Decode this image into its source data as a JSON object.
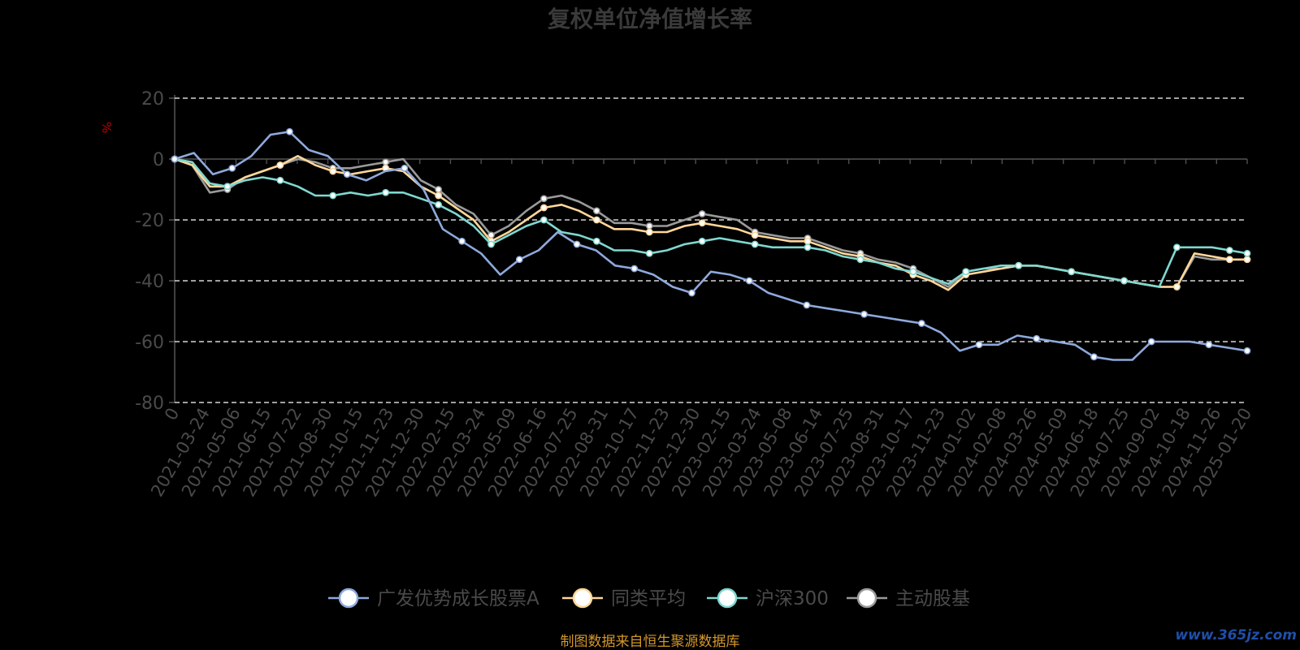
{
  "title": "复权单位净值增长率",
  "unit_label": "%",
  "source_note": "制图数据来自恒生聚源数据库",
  "watermark": "www.365jz.com",
  "colors": {
    "background": "#000000",
    "grid": "#ffffff",
    "axis": "#555555",
    "tick_text": "#4a4a4a",
    "series": [
      "#8ea9dc",
      "#ffd79a",
      "#7fd8d0",
      "#9a9a9a"
    ]
  },
  "chart_data": {
    "type": "line",
    "title": "复权单位净值增长率",
    "ylabel": "%",
    "ylim": [
      -80,
      20
    ],
    "yticks": [
      20,
      0,
      -20,
      -40,
      -60,
      -80
    ],
    "grid": true,
    "legend": "bottom",
    "x_ticks": [
      "0",
      "2021-03-24",
      "2021-05-06",
      "2021-06-15",
      "2021-07-22",
      "2021-08-30",
      "2021-10-15",
      "2021-11-23",
      "2021-12-30",
      "2022-02-15",
      "2022-03-24",
      "2022-05-09",
      "2022-06-16",
      "2022-07-25",
      "2022-08-31",
      "2022-10-17",
      "2022-11-23",
      "2022-12-30",
      "2023-02-15",
      "2023-03-24",
      "2023-05-08",
      "2023-06-14",
      "2023-07-25",
      "2023-08-31",
      "2023-10-17",
      "2023-11-23",
      "2024-01-02",
      "2024-02-08",
      "2024-03-26",
      "2024-05-09",
      "2024-06-18",
      "2024-07-25",
      "2024-09-02",
      "2024-10-18",
      "2024-11-26",
      "2025-01-20"
    ],
    "series": [
      {
        "name": "广发优势成长股票A",
        "values": [
          0,
          2,
          -5,
          -3,
          1,
          8,
          9,
          3,
          1,
          -5,
          -7,
          -4,
          -3,
          -10,
          -23,
          -27,
          -31,
          -38,
          -33,
          -30,
          -24,
          -28,
          -30,
          -35,
          -36,
          -38,
          -42,
          -44,
          -37,
          -38,
          -40,
          -44,
          -46,
          -48,
          -49,
          -50,
          -51,
          -52,
          -53,
          -54,
          -57,
          -63,
          -61,
          -61,
          -58,
          -59,
          -60,
          -61,
          -65,
          -66,
          -66,
          -60,
          -60,
          -60,
          -61,
          -62,
          -63
        ]
      },
      {
        "name": "同类平均",
        "values": [
          0,
          -2,
          -9,
          -9,
          -6,
          -4,
          -2,
          1,
          -2,
          -4,
          -5,
          -4,
          -3,
          -4,
          -9,
          -12,
          -16,
          -20,
          -27,
          -24,
          -20,
          -16,
          -15,
          -17,
          -20,
          -23,
          -23,
          -24,
          -24,
          -22,
          -21,
          -22,
          -23,
          -25,
          -26,
          -27,
          -27,
          -29,
          -31,
          -32,
          -34,
          -35,
          -38,
          -40,
          -43,
          -38,
          -37,
          -36,
          -35,
          -35,
          -36,
          -37,
          -38,
          -39,
          -40,
          -41,
          -42,
          -42,
          -31,
          -32,
          -33,
          -33
        ]
      },
      {
        "name": "沪深300",
        "values": [
          0,
          -1,
          -8,
          -9,
          -7,
          -6,
          -7,
          -9,
          -12,
          -12,
          -11,
          -12,
          -11,
          -11,
          -13,
          -15,
          -18,
          -22,
          -28,
          -25,
          -22,
          -20,
          -24,
          -25,
          -27,
          -30,
          -30,
          -31,
          -30,
          -28,
          -27,
          -26,
          -27,
          -28,
          -29,
          -29,
          -29,
          -30,
          -32,
          -33,
          -34,
          -36,
          -37,
          -39,
          -41,
          -37,
          -36,
          -35,
          -35,
          -35,
          -36,
          -37,
          -38,
          -39,
          -40,
          -41,
          -42,
          -29,
          -29,
          -29,
          -30,
          -31
        ]
      },
      {
        "name": "主动股基",
        "values": [
          0,
          -2,
          -11,
          -10,
          -6,
          -4,
          -2,
          0,
          -1,
          -3,
          -3,
          -2,
          -1,
          0,
          -7,
          -10,
          -15,
          -18,
          -25,
          -22,
          -17,
          -13,
          -12,
          -14,
          -17,
          -21,
          -21,
          -22,
          -22,
          -20,
          -18,
          -19,
          -20,
          -24,
          -25,
          -26,
          -26,
          -28,
          -30,
          -31,
          -33,
          -34,
          -36,
          -39,
          -42,
          -37,
          -36,
          -36,
          -35,
          -35,
          -36,
          -37,
          -38,
          -39,
          -40,
          -41,
          -42,
          -42,
          -32,
          -33,
          -33,
          -33
        ]
      }
    ]
  }
}
